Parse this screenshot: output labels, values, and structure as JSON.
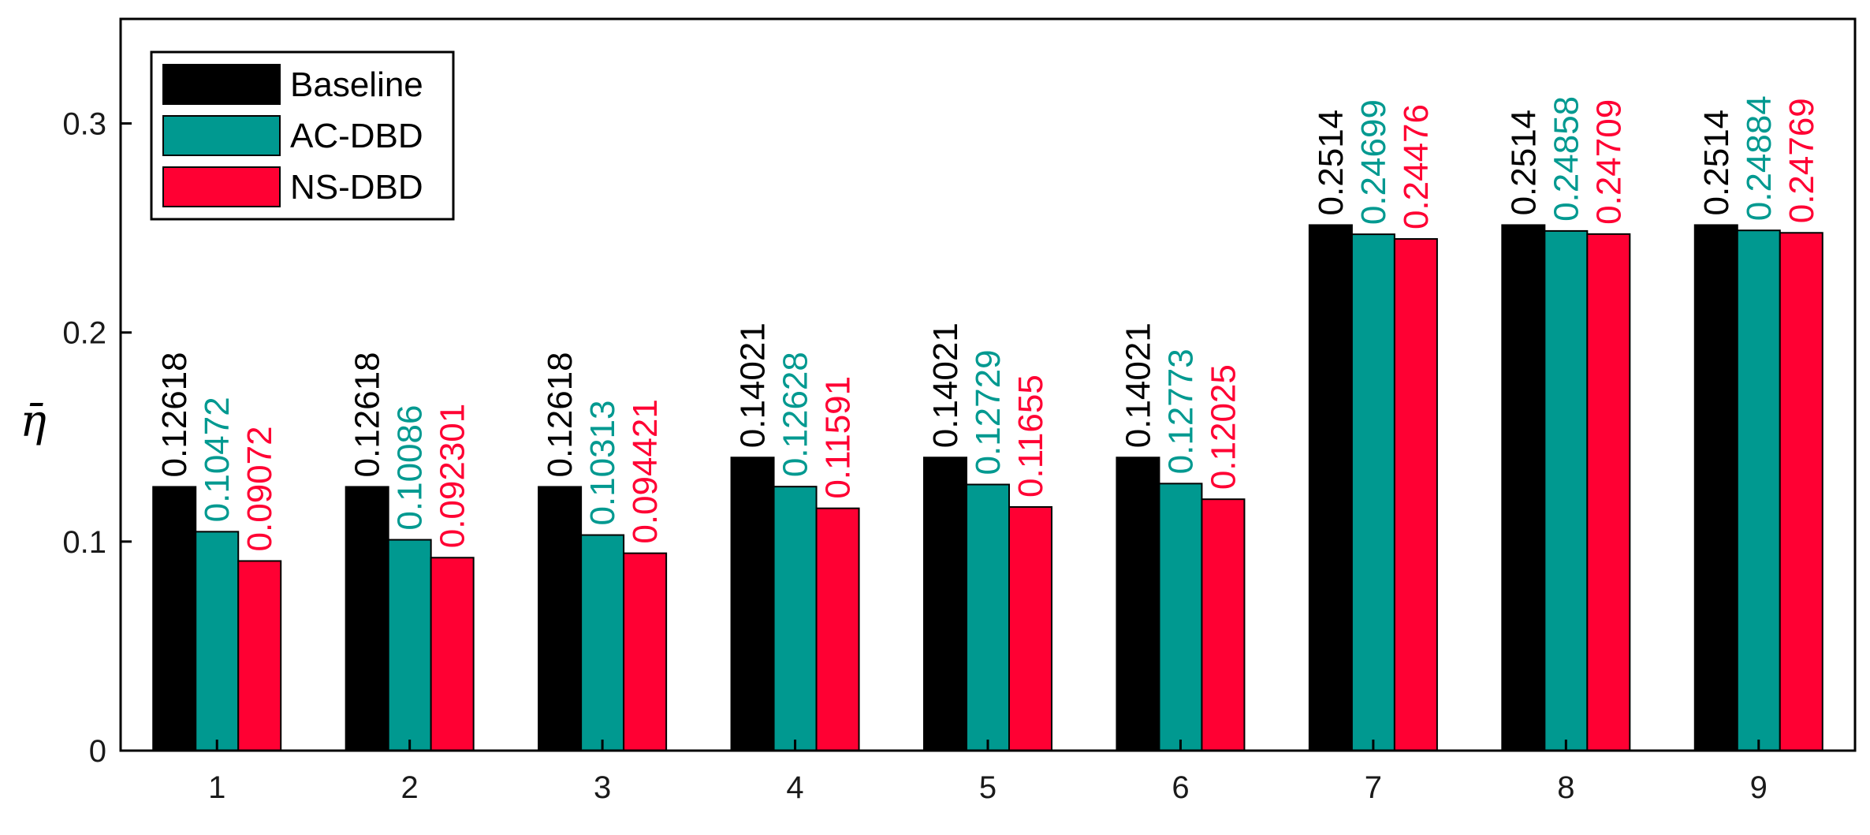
{
  "chart_data": {
    "type": "bar",
    "categories": [
      "1",
      "2",
      "3",
      "4",
      "5",
      "6",
      "7",
      "8",
      "9"
    ],
    "series": [
      {
        "name": "Baseline",
        "color": "#000000",
        "values": [
          0.12618,
          0.12618,
          0.12618,
          0.14021,
          0.14021,
          0.14021,
          0.2514,
          0.2514,
          0.2514
        ],
        "labels": [
          "0.12618",
          "0.12618",
          "0.12618",
          "0.14021",
          "0.14021",
          "0.14021",
          "0.2514",
          "0.2514",
          "0.2514"
        ]
      },
      {
        "name": "AC-DBD",
        "color": "#009990",
        "values": [
          0.10472,
          0.10086,
          0.10313,
          0.12628,
          0.12729,
          0.12773,
          0.24699,
          0.24858,
          0.24884
        ],
        "labels": [
          "0.10472",
          "0.10086",
          "0.10313",
          "0.12628",
          "0.12729",
          "0.12773",
          "0.24699",
          "0.24858",
          "0.24884"
        ]
      },
      {
        "name": "NS-DBD",
        "color": "#ff0033",
        "values": [
          0.09072,
          0.092301,
          0.094421,
          0.11591,
          0.11655,
          0.12025,
          0.24476,
          0.24709,
          0.24769
        ],
        "labels": [
          "0.09072",
          "0.092301",
          "0.094421",
          "0.11591",
          "0.11655",
          "0.12025",
          "0.24476",
          "0.24709",
          "0.24769"
        ]
      }
    ],
    "ylabel": "η̄",
    "ylim": [
      0,
      0.35
    ],
    "yticks": [
      0,
      0.1,
      0.2,
      0.3
    ],
    "ytick_labels": [
      "0",
      "0.1",
      "0.2",
      "0.3"
    ],
    "grid": false,
    "legend_position": "top-left"
  }
}
